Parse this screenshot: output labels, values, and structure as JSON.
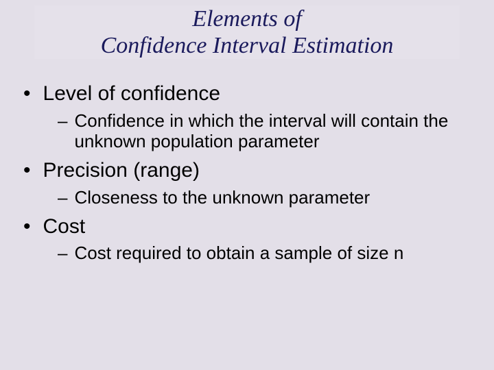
{
  "slide": {
    "background_color": "#e3dfe8",
    "title_box_color": "#e5e1ea",
    "title_text_color": "#1a1a5c",
    "body_text_color": "#000000",
    "title_line1": "Elements of",
    "title_line2": "Confidence Interval Estimation",
    "title_font_family": "Comic Sans MS",
    "title_font_style": "italic",
    "title_font_size_pt": 26,
    "bullet_font_size_pt": 22,
    "sub_font_size_pt": 19,
    "bullets": [
      {
        "label": "Level of confidence",
        "sub": "Confidence in which the interval will contain the unknown population parameter"
      },
      {
        "label": "Precision (range)",
        "sub": "Closeness to the unknown parameter"
      },
      {
        "label": "Cost",
        "sub": "Cost required to obtain a sample of size n"
      }
    ]
  }
}
